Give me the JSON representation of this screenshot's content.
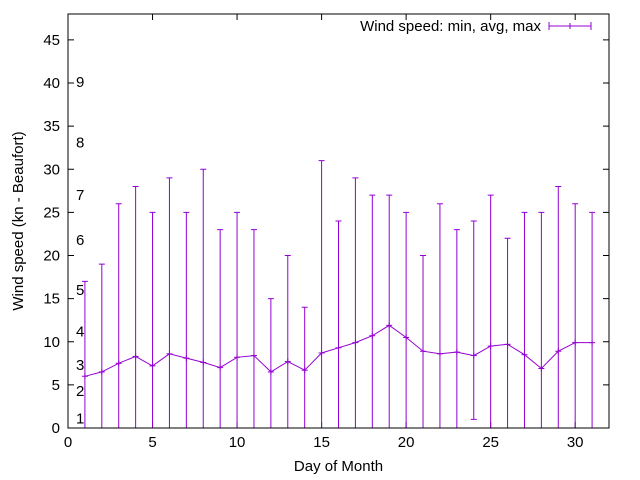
{
  "chart_data": {
    "type": "line",
    "xlabel": "Day of Month",
    "ylabel": "Wind speed (kn - Beaufort)",
    "xlim": [
      0,
      32
    ],
    "ylim": [
      0,
      48
    ],
    "xticks": [
      "0",
      "5",
      "10",
      "15",
      "20",
      "25",
      "30"
    ],
    "yticks": [
      "0",
      "5",
      "10",
      "15",
      "20",
      "25",
      "30",
      "35",
      "40",
      "45"
    ],
    "grid": false,
    "legend_position": "top-right",
    "series": [
      {
        "name": "Wind speed: min, avg, max",
        "color": "#9400d3",
        "style": "errorbars-with-line",
        "x": [
          1,
          2,
          3,
          4,
          5,
          6,
          7,
          8,
          9,
          10,
          11,
          12,
          13,
          14,
          15,
          16,
          17,
          18,
          19,
          20,
          21,
          22,
          23,
          24,
          25,
          26,
          27,
          28,
          29,
          30,
          31
        ],
        "avg": [
          6.0,
          6.5,
          7.5,
          8.3,
          7.2,
          8.6,
          8.1,
          7.6,
          7.0,
          8.2,
          8.4,
          6.5,
          7.7,
          6.7,
          8.7,
          9.3,
          9.9,
          10.7,
          11.9,
          10.5,
          8.9,
          8.6,
          8.8,
          8.4,
          9.5,
          9.7,
          8.5,
          6.9,
          8.9,
          9.9,
          9.9
        ],
        "min": [
          0,
          0,
          0,
          0,
          0,
          0,
          0,
          0,
          0,
          0,
          0,
          0,
          0,
          0,
          0,
          0,
          0,
          0,
          0,
          0,
          0,
          0,
          0,
          1,
          0,
          0,
          0,
          0,
          0,
          0,
          0
        ],
        "max": [
          17,
          19,
          26,
          28,
          25,
          29,
          25,
          30,
          23,
          25,
          23,
          15,
          20,
          14,
          31,
          24,
          29,
          27,
          27,
          25,
          20,
          26,
          23,
          24,
          27,
          22,
          25,
          25,
          28,
          26,
          25
        ]
      }
    ],
    "annotations": {
      "beaufort_scale": [
        {
          "label": "1",
          "value": 1.1
        },
        {
          "label": "2",
          "value": 4.3
        },
        {
          "label": "3",
          "value": 7.3
        },
        {
          "label": "4",
          "value": 11.2
        },
        {
          "label": "5",
          "value": 16.0
        },
        {
          "label": "6",
          "value": 21.8
        },
        {
          "label": "7",
          "value": 27.0
        },
        {
          "label": "8",
          "value": 33.1
        },
        {
          "label": "9",
          "value": 40.1
        }
      ]
    }
  }
}
